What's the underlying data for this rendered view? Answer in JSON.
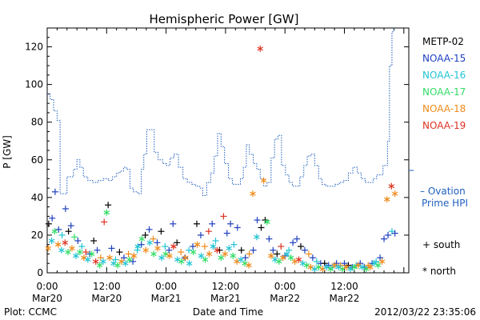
{
  "chart_data": {
    "type": "scatter",
    "title": "Hemispheric Power [GW]",
    "ylabel": "P [GW]",
    "xlabel": "Date and Time",
    "ylim": [
      0,
      130
    ],
    "yticks": [
      0,
      20,
      40,
      60,
      80,
      100,
      120
    ],
    "xlim_hours": [
      0,
      73
    ],
    "xticks": [
      {
        "hour": 0,
        "time": "0:00",
        "date": "Mar20"
      },
      {
        "hour": 12,
        "time": "12:00",
        "date": "Mar20"
      },
      {
        "hour": 24,
        "time": "0:00",
        "date": "Mar21"
      },
      {
        "hour": 36,
        "time": "12:00",
        "date": "Mar21"
      },
      {
        "hour": 48,
        "time": "0:00",
        "date": "Mar22"
      },
      {
        "hour": 60,
        "time": "12:00",
        "date": "Mar22"
      }
    ],
    "legend": {
      "placement": "right",
      "satellites": [
        {
          "name": "METP-02",
          "color": "#000000"
        },
        {
          "name": "NOAA-15",
          "color": "#1f3fbf"
        },
        {
          "name": "NOAA-16",
          "color": "#22c4d4"
        },
        {
          "name": "NOAA-17",
          "color": "#33dd66"
        },
        {
          "name": "NOAA-18",
          "color": "#ee8a1a"
        },
        {
          "name": "NOAA-19",
          "color": "#dd3322"
        }
      ],
      "ovation_label_1": "– Ovation",
      "ovation_label_2": "Prime HPI",
      "ovation_color": "#1f5fbf",
      "south_label": "+ south",
      "north_label": "* north"
    },
    "ovation_series": [
      [
        0,
        95
      ],
      [
        0.6,
        92
      ],
      [
        1.3,
        86
      ],
      [
        2.0,
        81
      ],
      [
        2.6,
        42
      ],
      [
        3.2,
        42
      ],
      [
        4.0,
        51
      ],
      [
        4.6,
        51
      ],
      [
        5.3,
        55
      ],
      [
        6.0,
        60
      ],
      [
        6.6,
        56
      ],
      [
        7.3,
        51
      ],
      [
        8.2,
        49
      ],
      [
        9.2,
        48
      ],
      [
        10.2,
        49
      ],
      [
        11.3,
        50
      ],
      [
        12.3,
        49
      ],
      [
        13.2,
        51
      ],
      [
        14.0,
        53
      ],
      [
        14.7,
        54
      ],
      [
        15.4,
        56
      ],
      [
        16.0,
        55
      ],
      [
        16.7,
        45
      ],
      [
        17.4,
        43
      ],
      [
        18.3,
        42
      ],
      [
        19.0,
        55
      ],
      [
        19.5,
        63
      ],
      [
        20.1,
        76
      ],
      [
        21.0,
        76
      ],
      [
        21.6,
        64
      ],
      [
        22.4,
        60
      ],
      [
        23.3,
        58
      ],
      [
        24.1,
        57
      ],
      [
        24.8,
        61
      ],
      [
        25.6,
        63
      ],
      [
        26.5,
        56
      ],
      [
        27.4,
        50
      ],
      [
        28.3,
        48
      ],
      [
        29.2,
        47
      ],
      [
        30.0,
        46
      ],
      [
        30.8,
        45
      ],
      [
        31.4,
        41
      ],
      [
        32.2,
        48
      ],
      [
        33.0,
        53
      ],
      [
        33.7,
        62
      ],
      [
        34.4,
        74
      ],
      [
        35.1,
        67
      ],
      [
        35.8,
        58
      ],
      [
        36.6,
        50
      ],
      [
        37.4,
        47
      ],
      [
        38.2,
        47
      ],
      [
        39.0,
        50
      ],
      [
        39.6,
        56
      ],
      [
        40.2,
        68
      ],
      [
        40.8,
        63
      ],
      [
        41.6,
        58
      ],
      [
        42.3,
        55
      ],
      [
        43.0,
        50
      ],
      [
        43.7,
        46
      ],
      [
        44.4,
        48
      ],
      [
        45.2,
        61
      ],
      [
        45.9,
        71
      ],
      [
        46.6,
        73
      ],
      [
        47.3,
        57
      ],
      [
        48.1,
        52
      ],
      [
        48.8,
        48
      ],
      [
        49.5,
        46
      ],
      [
        50.2,
        46
      ],
      [
        51.0,
        51
      ],
      [
        51.8,
        57
      ],
      [
        52.5,
        62
      ],
      [
        53.2,
        63
      ],
      [
        54.0,
        57
      ],
      [
        54.8,
        50
      ],
      [
        55.5,
        47
      ],
      [
        56.3,
        46
      ],
      [
        57.2,
        46
      ],
      [
        58.1,
        47
      ],
      [
        59.0,
        48
      ],
      [
        59.9,
        49
      ],
      [
        60.8,
        53
      ],
      [
        61.7,
        56
      ],
      [
        62.6,
        53
      ],
      [
        63.4,
        50
      ],
      [
        64.2,
        48
      ],
      [
        65.0,
        48
      ],
      [
        65.8,
        50
      ],
      [
        66.5,
        52
      ],
      [
        67.2,
        52
      ],
      [
        67.8,
        57
      ],
      [
        68.2,
        57
      ],
      [
        68.7,
        70
      ],
      [
        69.1,
        110
      ],
      [
        69.6,
        128
      ],
      [
        70.0,
        130
      ]
    ],
    "obs_south": [
      [
        0.3,
        26,
        0
      ],
      [
        1.0,
        29,
        1
      ],
      [
        1.6,
        43,
        1
      ],
      [
        2.3,
        23,
        1
      ],
      [
        3.0,
        20,
        2
      ],
      [
        3.7,
        34,
        1
      ],
      [
        4.3,
        22,
        0
      ],
      [
        4.8,
        25,
        1
      ],
      [
        5.5,
        19,
        3
      ],
      [
        6.2,
        17,
        1
      ],
      [
        7.0,
        14,
        2
      ],
      [
        7.8,
        11,
        5
      ],
      [
        8.6,
        10,
        1
      ],
      [
        9.4,
        17,
        0
      ],
      [
        10.1,
        12,
        1
      ],
      [
        10.8,
        8,
        4
      ],
      [
        11.5,
        27,
        5
      ],
      [
        12.3,
        36,
        0
      ],
      [
        13.0,
        13,
        1
      ],
      [
        13.8,
        7,
        2
      ],
      [
        14.6,
        11,
        0
      ],
      [
        15.5,
        8,
        1
      ],
      [
        16.4,
        10,
        4
      ],
      [
        17.3,
        6,
        1
      ],
      [
        18.2,
        12,
        2
      ],
      [
        19.0,
        15,
        1
      ],
      [
        19.8,
        20,
        0
      ],
      [
        20.6,
        23,
        1
      ],
      [
        21.4,
        18,
        4
      ],
      [
        22.2,
        16,
        1
      ],
      [
        23.0,
        22,
        0
      ],
      [
        23.8,
        14,
        2
      ],
      [
        24.6,
        12,
        1
      ],
      [
        25.4,
        26,
        1
      ],
      [
        26.2,
        16,
        0
      ],
      [
        27.0,
        11,
        4
      ],
      [
        27.8,
        8,
        1
      ],
      [
        28.6,
        12,
        2
      ],
      [
        29.4,
        14,
        1
      ],
      [
        30.2,
        26,
        0
      ],
      [
        31.0,
        20,
        1
      ],
      [
        31.8,
        14,
        4
      ],
      [
        32.6,
        22,
        5
      ],
      [
        33.3,
        26,
        1
      ],
      [
        34.0,
        17,
        2
      ],
      [
        34.8,
        12,
        0
      ],
      [
        35.6,
        30,
        5
      ],
      [
        36.3,
        21,
        1
      ],
      [
        37.0,
        26,
        1
      ],
      [
        37.7,
        15,
        2
      ],
      [
        38.4,
        24,
        1
      ],
      [
        39.2,
        12,
        0
      ],
      [
        40.0,
        8,
        1
      ],
      [
        40.8,
        10,
        4
      ],
      [
        41.6,
        12,
        1
      ],
      [
        42.4,
        28,
        1
      ],
      [
        43.2,
        24,
        0
      ],
      [
        44.0,
        28,
        0
      ],
      [
        44.8,
        18,
        1
      ],
      [
        45.6,
        12,
        1
      ],
      [
        46.4,
        10,
        0
      ],
      [
        47.2,
        14,
        5
      ],
      [
        48.0,
        9,
        1
      ],
      [
        48.8,
        12,
        2
      ],
      [
        49.6,
        16,
        1
      ],
      [
        50.4,
        18,
        1
      ],
      [
        51.2,
        14,
        0
      ],
      [
        52.0,
        12,
        1
      ],
      [
        52.8,
        10,
        4
      ],
      [
        53.6,
        8,
        1
      ],
      [
        54.4,
        6,
        2
      ],
      [
        55.2,
        5,
        1
      ],
      [
        56.0,
        5,
        0
      ],
      [
        56.8,
        4,
        1
      ],
      [
        57.6,
        3,
        2
      ],
      [
        58.4,
        5,
        1
      ],
      [
        59.2,
        4,
        4
      ],
      [
        60.0,
        5,
        1
      ],
      [
        60.8,
        4,
        0
      ],
      [
        61.6,
        3,
        1
      ],
      [
        62.4,
        4,
        2
      ],
      [
        63.2,
        5,
        1
      ],
      [
        64.0,
        3,
        1
      ],
      [
        64.8,
        4,
        4
      ],
      [
        65.6,
        5,
        1
      ],
      [
        66.4,
        6,
        2
      ],
      [
        67.2,
        8,
        1
      ],
      [
        68.0,
        18,
        1
      ],
      [
        68.8,
        20,
        1
      ],
      [
        69.6,
        22,
        2
      ],
      [
        70.2,
        21,
        1
      ]
    ],
    "obs_north": [
      [
        0.2,
        13,
        4
      ],
      [
        0.9,
        17,
        2
      ],
      [
        1.5,
        22,
        3
      ],
      [
        2.2,
        15,
        4
      ],
      [
        2.9,
        12,
        2
      ],
      [
        3.6,
        16,
        5
      ],
      [
        4.2,
        11,
        3
      ],
      [
        5.0,
        13,
        4
      ],
      [
        5.8,
        9,
        2
      ],
      [
        6.6,
        11,
        3
      ],
      [
        7.4,
        8,
        4
      ],
      [
        8.2,
        7,
        2
      ],
      [
        9.0,
        10,
        3
      ],
      [
        9.8,
        6,
        5
      ],
      [
        10.6,
        4,
        3
      ],
      [
        11.3,
        6,
        2
      ],
      [
        12.0,
        32,
        3
      ],
      [
        12.6,
        8,
        4
      ],
      [
        13.4,
        5,
        2
      ],
      [
        14.2,
        4,
        3
      ],
      [
        15.0,
        6,
        4
      ],
      [
        15.8,
        5,
        2
      ],
      [
        16.6,
        7,
        3
      ],
      [
        17.5,
        9,
        4
      ],
      [
        18.3,
        14,
        2
      ],
      [
        19.1,
        18,
        3
      ],
      [
        19.9,
        12,
        4
      ],
      [
        20.7,
        16,
        2
      ],
      [
        21.5,
        10,
        3
      ],
      [
        22.3,
        13,
        4
      ],
      [
        23.1,
        8,
        2
      ],
      [
        23.9,
        10,
        3
      ],
      [
        24.7,
        9,
        4
      ],
      [
        25.5,
        14,
        5
      ],
      [
        26.3,
        7,
        2
      ],
      [
        27.1,
        6,
        3
      ],
      [
        27.9,
        8,
        4
      ],
      [
        28.7,
        5,
        2
      ],
      [
        29.5,
        11,
        3
      ],
      [
        30.3,
        15,
        4
      ],
      [
        31.1,
        9,
        2
      ],
      [
        31.9,
        7,
        3
      ],
      [
        32.7,
        10,
        4
      ],
      [
        33.5,
        14,
        2
      ],
      [
        34.3,
        12,
        5
      ],
      [
        35.1,
        8,
        3
      ],
      [
        35.9,
        10,
        4
      ],
      [
        36.7,
        13,
        2
      ],
      [
        37.5,
        9,
        3
      ],
      [
        38.3,
        6,
        4
      ],
      [
        39.1,
        7,
        2
      ],
      [
        39.9,
        5,
        3
      ],
      [
        40.7,
        4,
        4
      ],
      [
        41.5,
        42,
        4
      ],
      [
        42.3,
        19,
        2
      ],
      [
        43.0,
        119,
        5
      ],
      [
        43.7,
        49,
        4
      ],
      [
        44.4,
        27,
        3
      ],
      [
        45.2,
        9,
        4
      ],
      [
        46.0,
        7,
        2
      ],
      [
        46.8,
        6,
        3
      ],
      [
        47.6,
        8,
        4
      ],
      [
        48.4,
        10,
        2
      ],
      [
        49.2,
        8,
        3
      ],
      [
        50.0,
        6,
        4
      ],
      [
        50.8,
        7,
        5
      ],
      [
        51.6,
        5,
        2
      ],
      [
        52.4,
        4,
        3
      ],
      [
        53.2,
        3,
        4
      ],
      [
        54.0,
        2,
        2
      ],
      [
        54.8,
        3,
        3
      ],
      [
        55.6,
        2,
        4
      ],
      [
        56.4,
        3,
        2
      ],
      [
        57.2,
        2,
        3
      ],
      [
        58.0,
        4,
        4
      ],
      [
        58.8,
        3,
        2
      ],
      [
        59.6,
        2,
        3
      ],
      [
        60.4,
        3,
        4
      ],
      [
        61.2,
        2,
        2
      ],
      [
        62.0,
        3,
        3
      ],
      [
        62.8,
        4,
        4
      ],
      [
        63.6,
        3,
        2
      ],
      [
        64.4,
        2,
        3
      ],
      [
        65.2,
        3,
        4
      ],
      [
        66.0,
        5,
        2
      ],
      [
        66.8,
        4,
        3
      ],
      [
        67.6,
        6,
        4
      ],
      [
        68.6,
        39,
        4
      ],
      [
        69.5,
        46,
        5
      ],
      [
        70.2,
        42,
        4
      ]
    ]
  },
  "footer": {
    "plot_label": "Plot: CCMC",
    "timestamp": "2012/03/22 23:35:06"
  }
}
